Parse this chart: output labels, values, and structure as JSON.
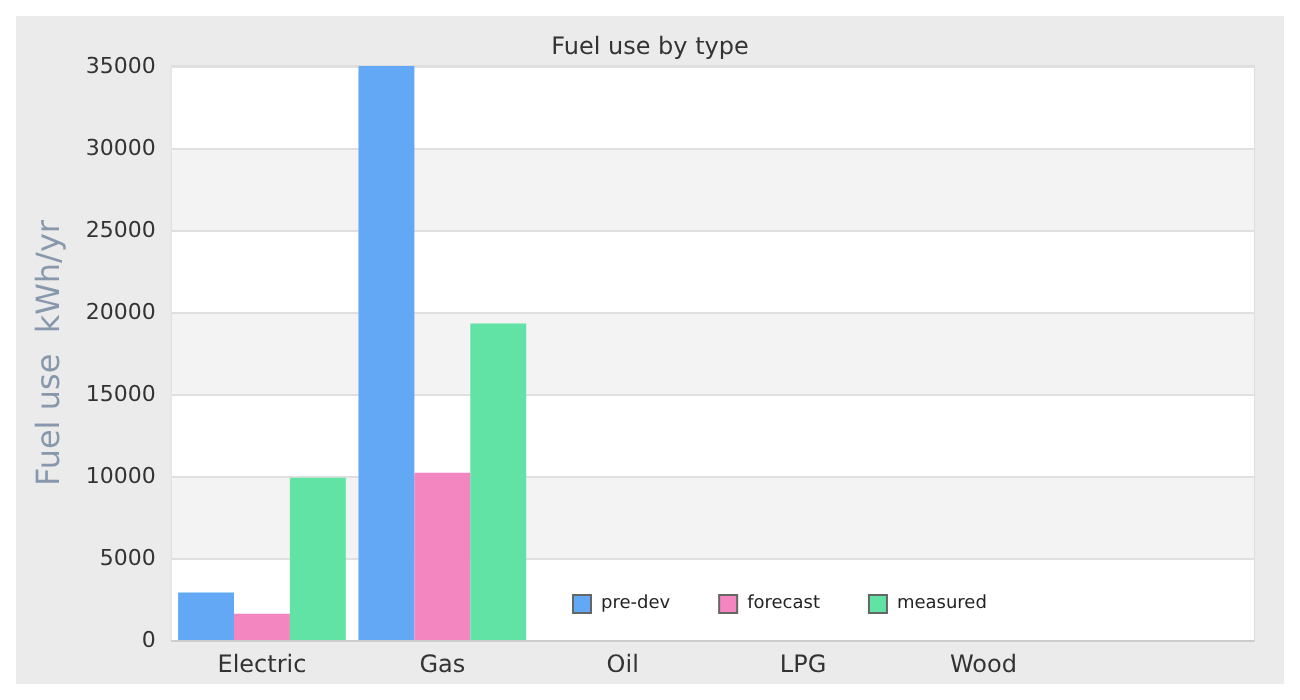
{
  "chart_data": {
    "type": "bar",
    "title": "Fuel use by type",
    "ylabel": "Fuel use  kWh/yr",
    "categories": [
      "Electric",
      "Gas",
      "Oil",
      "LPG",
      "Wood",
      null
    ],
    "series": [
      {
        "name": "pre-dev",
        "color": "#62a8f5",
        "values": [
          2900,
          35000,
          0,
          0,
          0,
          0
        ]
      },
      {
        "name": "forecast",
        "color": "#f385c0",
        "values": [
          1600,
          10200,
          0,
          0,
          0,
          0
        ]
      },
      {
        "name": "measured",
        "color": "#62e3a6",
        "values": [
          9900,
          19300,
          0,
          0,
          0,
          0
        ]
      }
    ],
    "ylim": [
      0,
      35000
    ],
    "yticks": [
      0,
      5000,
      10000,
      15000,
      20000,
      25000,
      30000,
      35000
    ],
    "grid": "y",
    "legend": "bottom"
  }
}
